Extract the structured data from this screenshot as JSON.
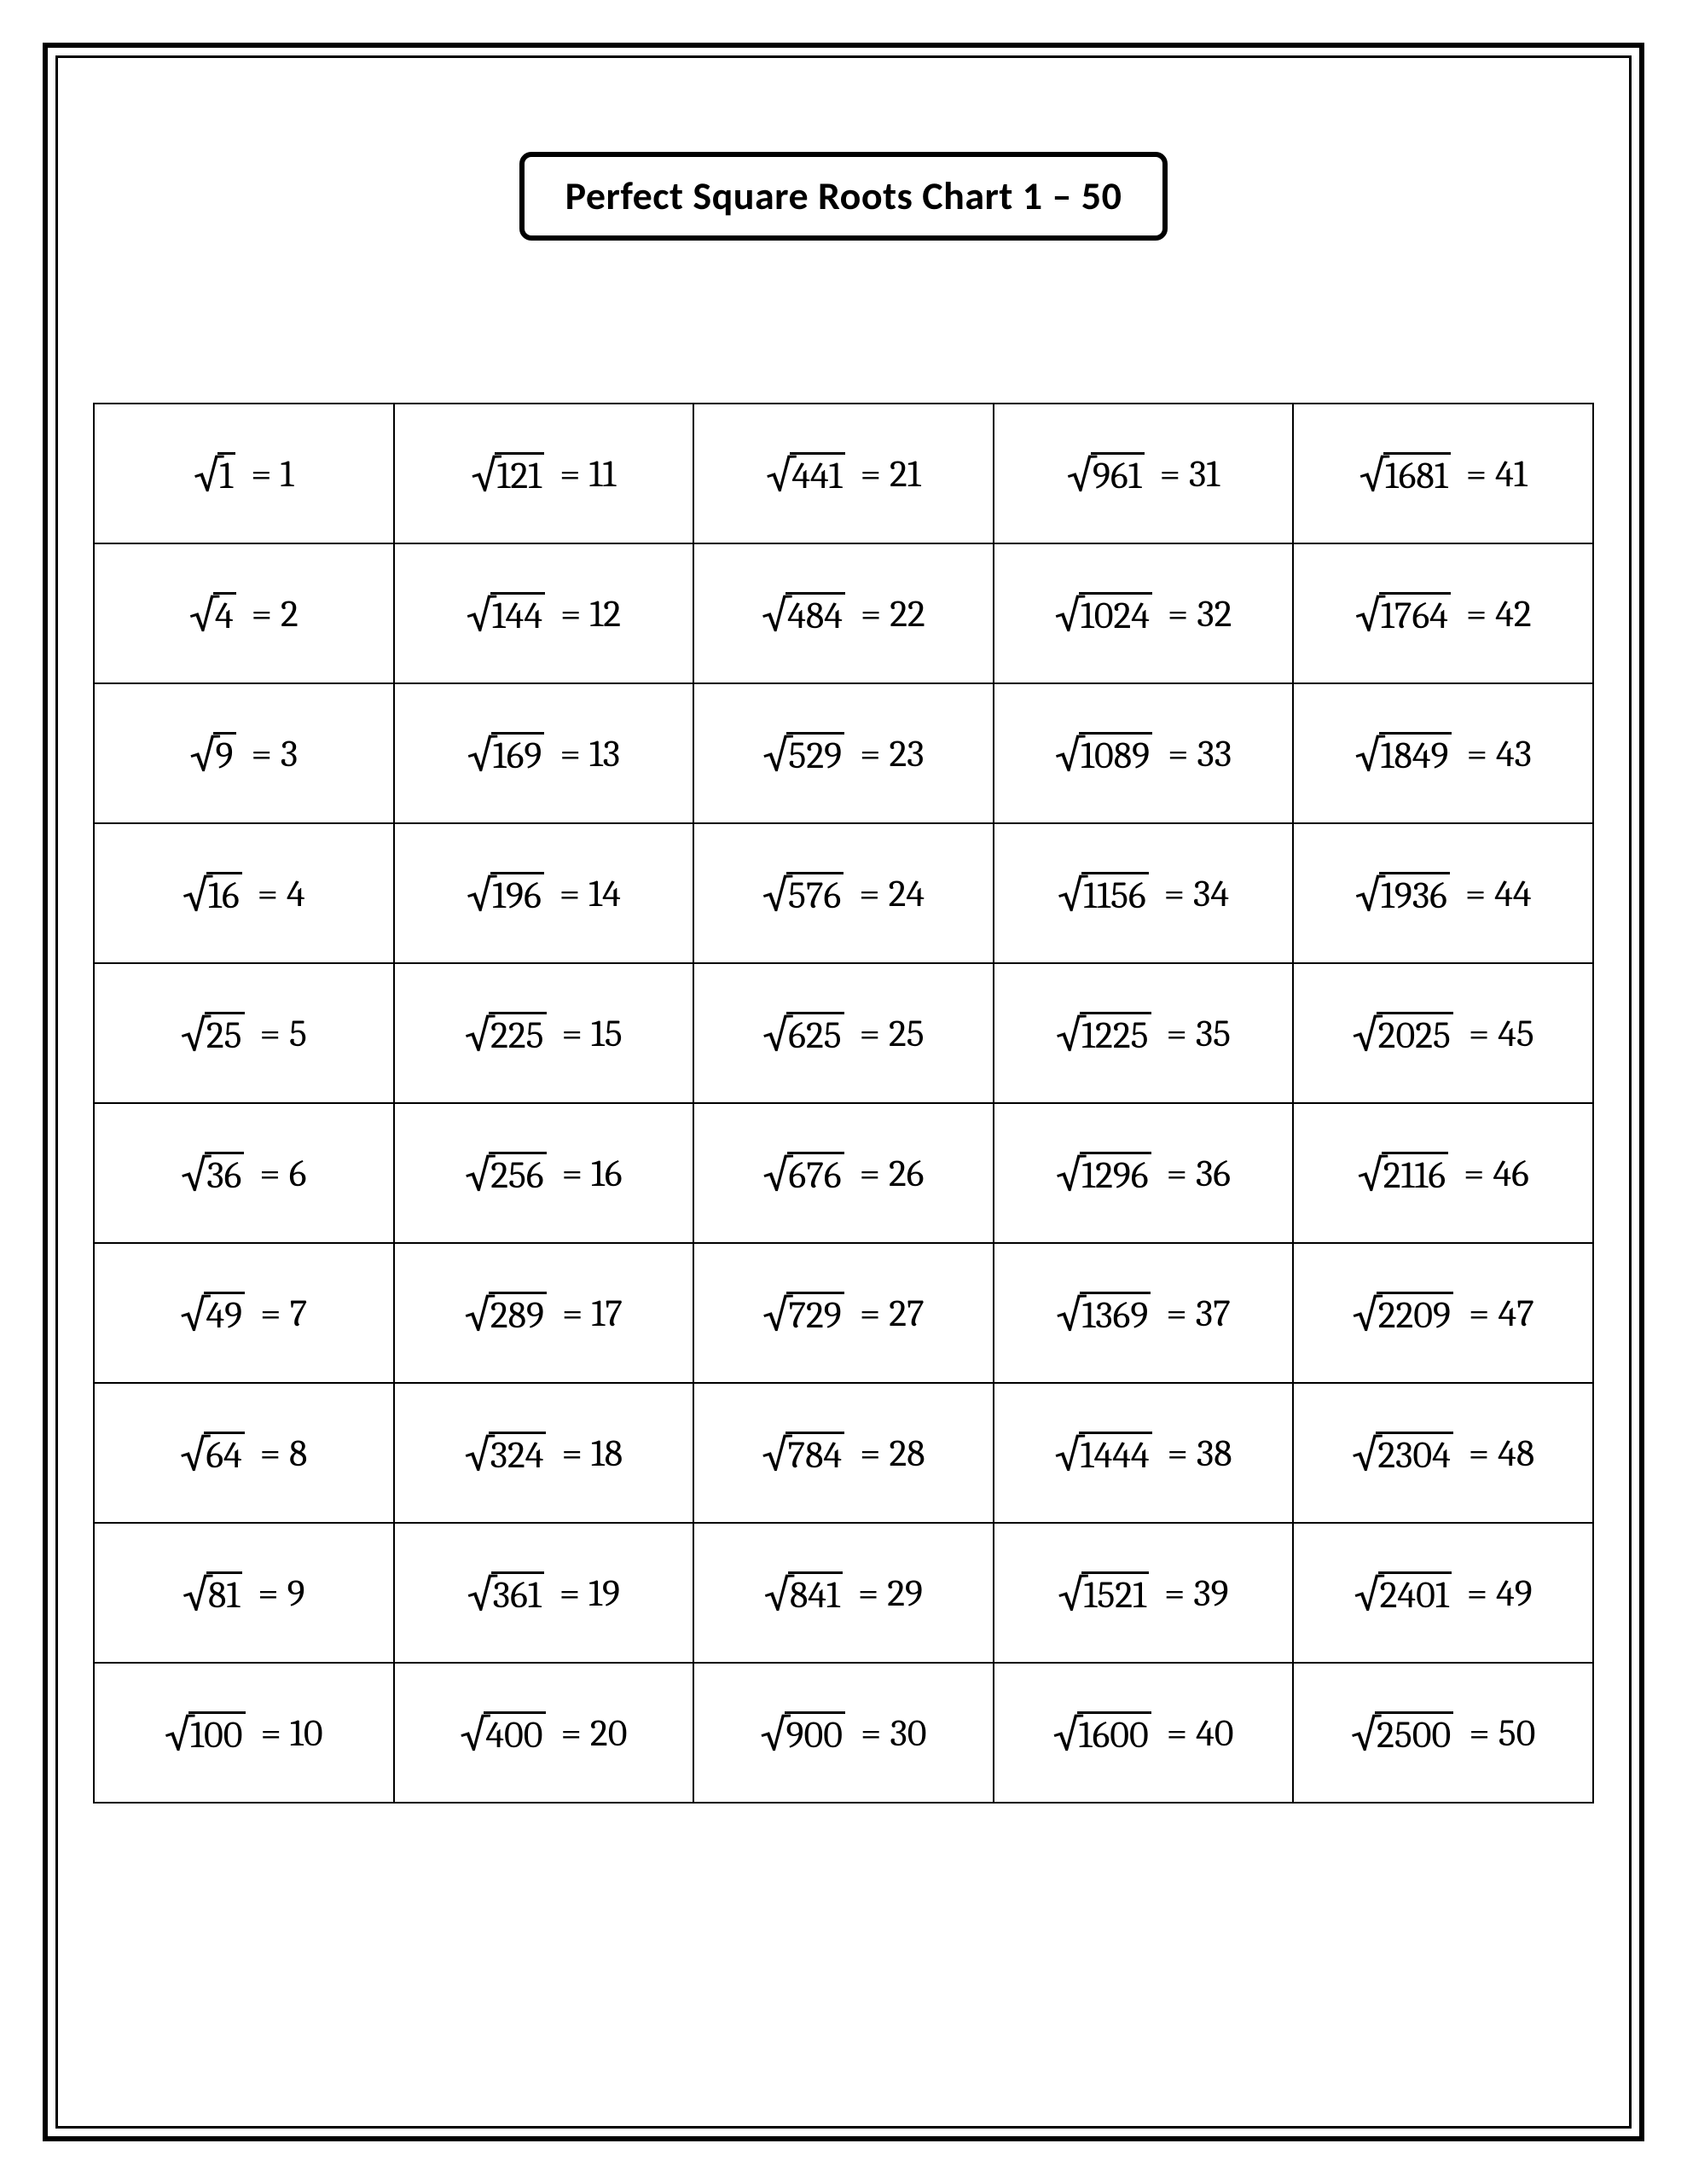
{
  "title": "Perfect Square Roots Chart 1 – 50",
  "table": {
    "rows": 10,
    "cols": 5,
    "border_color": "#000000",
    "background_color": "#ffffff",
    "font_family": "Cambria, Georgia, serif",
    "cell_font_size": 44,
    "title_font_family": "Calibri, Arial, sans-serif",
    "title_font_size": 46,
    "title_border_radius": 14,
    "entries": [
      [
        {
          "radicand": "1",
          "result": "1"
        },
        {
          "radicand": "121",
          "result": "11"
        },
        {
          "radicand": "441",
          "result": "21"
        },
        {
          "radicand": "961",
          "result": "31"
        },
        {
          "radicand": "1681",
          "result": "41"
        }
      ],
      [
        {
          "radicand": "4",
          "result": "2"
        },
        {
          "radicand": "144",
          "result": "12"
        },
        {
          "radicand": "484",
          "result": "22"
        },
        {
          "radicand": "1024",
          "result": "32"
        },
        {
          "radicand": "1764",
          "result": "42"
        }
      ],
      [
        {
          "radicand": "9",
          "result": "3"
        },
        {
          "radicand": "169",
          "result": "13"
        },
        {
          "radicand": "529",
          "result": "23"
        },
        {
          "radicand": "1089",
          "result": "33"
        },
        {
          "radicand": "1849",
          "result": "43"
        }
      ],
      [
        {
          "radicand": "16",
          "result": "4"
        },
        {
          "radicand": "196",
          "result": "14"
        },
        {
          "radicand": "576",
          "result": "24"
        },
        {
          "radicand": "1156",
          "result": "34"
        },
        {
          "radicand": "1936",
          "result": "44"
        }
      ],
      [
        {
          "radicand": "25",
          "result": "5"
        },
        {
          "radicand": "225",
          "result": "15"
        },
        {
          "radicand": "625",
          "result": "25"
        },
        {
          "radicand": "1225",
          "result": "35"
        },
        {
          "radicand": "2025",
          "result": "45"
        }
      ],
      [
        {
          "radicand": "36",
          "result": "6"
        },
        {
          "radicand": "256",
          "result": "16"
        },
        {
          "radicand": "676",
          "result": "26"
        },
        {
          "radicand": "1296",
          "result": "36"
        },
        {
          "radicand": "2116",
          "result": "46"
        }
      ],
      [
        {
          "radicand": "49",
          "result": "7"
        },
        {
          "radicand": "289",
          "result": "17"
        },
        {
          "radicand": "729",
          "result": "27"
        },
        {
          "radicand": "1369",
          "result": "37"
        },
        {
          "radicand": "2209",
          "result": "47"
        }
      ],
      [
        {
          "radicand": "64",
          "result": "8"
        },
        {
          "radicand": "324",
          "result": "18"
        },
        {
          "radicand": "784",
          "result": "28"
        },
        {
          "radicand": "1444",
          "result": "38"
        },
        {
          "radicand": "2304",
          "result": "48"
        }
      ],
      [
        {
          "radicand": "81",
          "result": "9"
        },
        {
          "radicand": "361",
          "result": "19"
        },
        {
          "radicand": "841",
          "result": "29"
        },
        {
          "radicand": "1521",
          "result": "39"
        },
        {
          "radicand": "2401",
          "result": "49"
        }
      ],
      [
        {
          "radicand": "100",
          "result": "10"
        },
        {
          "radicand": "400",
          "result": "20"
        },
        {
          "radicand": "900",
          "result": "30"
        },
        {
          "radicand": "1600",
          "result": "40"
        },
        {
          "radicand": "2500",
          "result": "50"
        }
      ]
    ]
  },
  "symbols": {
    "surd": "√",
    "equals": "="
  }
}
